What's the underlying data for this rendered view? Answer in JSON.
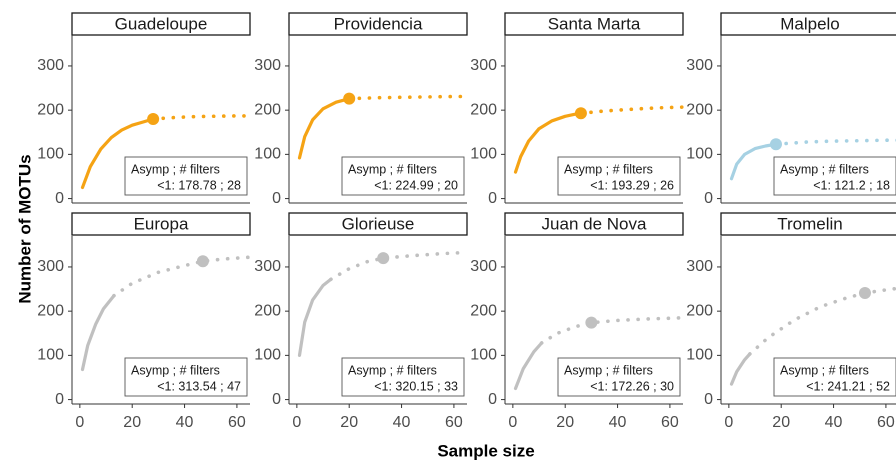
{
  "chart_data": {
    "type": "line",
    "xlabel": "Sample size",
    "ylabel": "Number of MOTUs",
    "xlim": [
      -3,
      65
    ],
    "ylim": [
      -10,
      370
    ],
    "x_ticks": [
      0,
      20,
      40,
      60
    ],
    "y_ticks": [
      0,
      100,
      200,
      300
    ],
    "grid": false,
    "colors": {
      "orange": "#f5a314",
      "lightblue": "#a6d1e3",
      "grey": "#c0c0c0"
    },
    "box_header": "Asymp ;  # filters",
    "panels": [
      {
        "title": "Guadeloupe",
        "color": "#f5a314",
        "asymp_label": "<1:  178.78 ;  28",
        "asymp": 178.78,
        "filters": 28,
        "point": [
          28,
          180
        ],
        "interpolated": [
          [
            1,
            25
          ],
          [
            4,
            72
          ],
          [
            8,
            112
          ],
          [
            12,
            138
          ],
          [
            16,
            155
          ],
          [
            20,
            166
          ],
          [
            24,
            173
          ],
          [
            28,
            180
          ]
        ],
        "extrapolated": [
          [
            28,
            180
          ],
          [
            35,
            183
          ],
          [
            42,
            185
          ],
          [
            50,
            186
          ],
          [
            60,
            187
          ],
          [
            65,
            187
          ]
        ]
      },
      {
        "title": "Providencia",
        "color": "#f5a314",
        "asymp_label": "<1:  224.99 ;  20",
        "asymp": 224.99,
        "filters": 20,
        "point": [
          20,
          226
        ],
        "interpolated": [
          [
            1,
            92
          ],
          [
            3,
            140
          ],
          [
            6,
            178
          ],
          [
            10,
            203
          ],
          [
            15,
            218
          ],
          [
            20,
            226
          ]
        ],
        "extrapolated": [
          [
            20,
            226
          ],
          [
            30,
            228
          ],
          [
            40,
            229
          ],
          [
            50,
            230
          ],
          [
            60,
            231
          ],
          [
            65,
            231
          ]
        ]
      },
      {
        "title": "Santa Marta",
        "color": "#f5a314",
        "asymp_label": "<1:  193.29 ;  26",
        "asymp": 193.29,
        "filters": 26,
        "point": [
          26,
          193
        ],
        "interpolated": [
          [
            1,
            60
          ],
          [
            3,
            95
          ],
          [
            6,
            130
          ],
          [
            10,
            158
          ],
          [
            15,
            176
          ],
          [
            20,
            186
          ],
          [
            24,
            191
          ]
        ],
        "extrapolated": [
          [
            26,
            193
          ],
          [
            35,
            198
          ],
          [
            45,
            202
          ],
          [
            55,
            205
          ],
          [
            65,
            207
          ]
        ]
      },
      {
        "title": "Malpelo",
        "color": "#a6d1e3",
        "asymp_label": "<1:  121.2 ;  18",
        "asymp": 121.2,
        "filters": 18,
        "point": [
          18,
          123
        ],
        "interpolated": [
          [
            1,
            45
          ],
          [
            3,
            78
          ],
          [
            6,
            100
          ],
          [
            10,
            113
          ],
          [
            14,
            119
          ],
          [
            18,
            123
          ]
        ],
        "extrapolated": [
          [
            18,
            123
          ],
          [
            30,
            128
          ],
          [
            40,
            130
          ],
          [
            50,
            131
          ],
          [
            60,
            132
          ],
          [
            65,
            132
          ]
        ]
      },
      {
        "title": "Europa",
        "color": "#c0c0c0",
        "asymp_label": "<1:  313.54 ;  47",
        "asymp": 313.54,
        "filters": 47,
        "point": [
          47,
          313
        ],
        "interpolated": [
          [
            1,
            68
          ],
          [
            3,
            122
          ],
          [
            6,
            170
          ],
          [
            9,
            205
          ],
          [
            13,
            235
          ]
        ],
        "extrapolated": [
          [
            13,
            235
          ],
          [
            20,
            263
          ],
          [
            30,
            288
          ],
          [
            40,
            303
          ],
          [
            47,
            313
          ],
          [
            55,
            318
          ],
          [
            65,
            322
          ]
        ]
      },
      {
        "title": "Glorieuse",
        "color": "#c0c0c0",
        "asymp_label": "<1:  320.15 ;  33",
        "asymp": 320.15,
        "filters": 33,
        "point": [
          33,
          320
        ],
        "interpolated": [
          [
            1,
            100
          ],
          [
            3,
            175
          ],
          [
            6,
            225
          ],
          [
            10,
            258
          ],
          [
            13,
            272
          ]
        ],
        "extrapolated": [
          [
            13,
            272
          ],
          [
            20,
            296
          ],
          [
            27,
            312
          ],
          [
            33,
            320
          ],
          [
            45,
            326
          ],
          [
            55,
            330
          ],
          [
            65,
            333
          ]
        ]
      },
      {
        "title": "Juan de Nova",
        "color": "#c0c0c0",
        "asymp_label": "<1:  172.26 ;  30",
        "asymp": 172.26,
        "filters": 30,
        "point": [
          30,
          174
        ],
        "interpolated": [
          [
            1,
            25
          ],
          [
            4,
            70
          ],
          [
            8,
            108
          ],
          [
            11,
            128
          ]
        ],
        "extrapolated": [
          [
            11,
            128
          ],
          [
            17,
            150
          ],
          [
            24,
            165
          ],
          [
            30,
            174
          ],
          [
            40,
            179
          ],
          [
            50,
            182
          ],
          [
            65,
            185
          ]
        ]
      },
      {
        "title": "Tromelin",
        "color": "#c0c0c0",
        "asymp_label": "<1:  241.21 ;  52",
        "asymp": 241.21,
        "filters": 52,
        "point": [
          52,
          241
        ],
        "interpolated": [
          [
            1,
            35
          ],
          [
            3,
            63
          ],
          [
            6,
            90
          ],
          [
            8,
            103
          ]
        ],
        "extrapolated": [
          [
            8,
            103
          ],
          [
            15,
            140
          ],
          [
            25,
            180
          ],
          [
            35,
            210
          ],
          [
            45,
            230
          ],
          [
            52,
            241
          ],
          [
            60,
            248
          ],
          [
            65,
            252
          ]
        ]
      }
    ]
  }
}
